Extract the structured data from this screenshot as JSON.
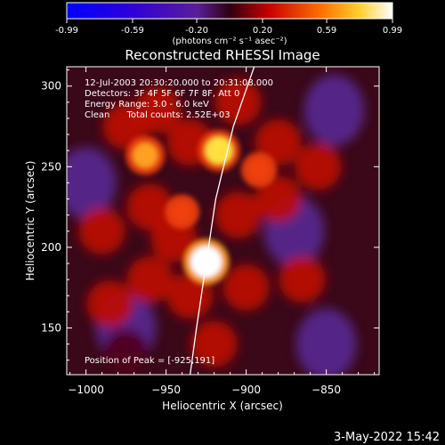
{
  "chart_data": {
    "type": "heatmap",
    "title": "Reconstructed RHESSI Image",
    "xlabel": "Heliocentric X (arcsec)",
    "ylabel": "Heliocentric Y (arcsec)",
    "x_ticks": [
      "-1000",
      "-950",
      "-900",
      "-850"
    ],
    "y_ticks": [
      "150",
      "200",
      "250",
      "300"
    ],
    "xlim": [
      -1012,
      -817
    ],
    "ylim": [
      121,
      312
    ],
    "colorbar": {
      "ticks": [
        "-0.99",
        "-0.59",
        "-0.20",
        "0.20",
        "0.59",
        "0.99"
      ],
      "units": "(photons cm⁻² s⁻¹ asec⁻²)",
      "range": [
        -0.99,
        0.99
      ]
    },
    "annotations": [
      "12-Jul-2003 20:30:20.000 to 20:31:08.000",
      "Detectors: 3F 4F 5F 6F 7F 8F, Att 0",
      "Energy Range: 3.0 - 6.0 keV",
      "Clean      Total counts: 2.52E+03"
    ],
    "peak_label": "Position of Peak = [-925,191]",
    "peak_position": [
      -925,
      191
    ],
    "bright_sources": [
      {
        "x": -925,
        "y": 191,
        "value": 0.99
      },
      {
        "x": -917,
        "y": 260,
        "value": 0.75
      },
      {
        "x": -963,
        "y": 257,
        "value": 0.6
      },
      {
        "x": -892,
        "y": 248,
        "value": 0.4
      },
      {
        "x": -940,
        "y": 222,
        "value": 0.35
      }
    ],
    "faint_regions": [
      {
        "x": -1000,
        "y": 240,
        "value": -0.4
      },
      {
        "x": -845,
        "y": 285,
        "value": -0.45
      },
      {
        "x": -870,
        "y": 210,
        "value": -0.35
      },
      {
        "x": -975,
        "y": 150,
        "value": -0.3
      },
      {
        "x": -850,
        "y": 140,
        "value": -0.35
      }
    ],
    "limb_curve": [
      [
        -935,
        121
      ],
      [
        -931,
        150
      ],
      [
        -925,
        190
      ],
      [
        -919,
        230
      ],
      [
        -908,
        275
      ],
      [
        -895,
        312
      ]
    ],
    "grid": false
  },
  "timestamp": "3-May-2022 15:42"
}
